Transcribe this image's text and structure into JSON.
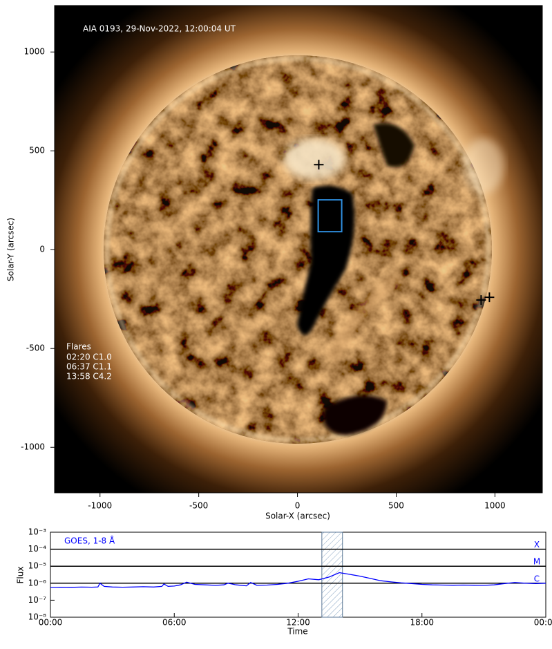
{
  "chart_data": [
    {
      "type": "image",
      "annotation": "AIA 0193, 29-Nov-2022, 12:00:04 UT",
      "flare_title": "Flares",
      "flares": [
        "02:20 C1.0",
        "06:37 C1.1",
        "13:58 C4.2"
      ],
      "xlabel": "Solar-X (arcsec)",
      "ylabel": "Solar-Y (arcsec)",
      "xlim": [
        -1230,
        1240
      ],
      "ylim": [
        -1230,
        1235
      ],
      "xticks": [
        -1000,
        -500,
        0,
        500,
        1000
      ],
      "yticks": [
        -1000,
        -500,
        0,
        500,
        1000
      ],
      "markers": {
        "x": [
          108,
          930,
          972
        ],
        "y": [
          430,
          -255,
          -241
        ],
        "color": "#000000"
      },
      "box": {
        "x": [
          105,
          224
        ],
        "y": [
          91,
          252
        ],
        "color": "#2f8fe0"
      }
    },
    {
      "type": "line",
      "xlabel": "Time",
      "ylabel": "Flux",
      "log_y": true,
      "xlim": [
        0,
        24
      ],
      "ylim": [
        1e-08,
        0.001
      ],
      "xticks": [
        {
          "value": 0,
          "label": "00:00"
        },
        {
          "value": 6,
          "label": "06:00"
        },
        {
          "value": 12,
          "label": "12:00"
        },
        {
          "value": 18,
          "label": "18:00"
        },
        {
          "value": 24,
          "label": "00:00"
        }
      ],
      "yticks": [
        {
          "value": 1e-08,
          "label": "10⁻⁸"
        },
        {
          "value": 1e-07,
          "label": "10⁻⁷"
        },
        {
          "value": 1e-06,
          "label": "10⁻⁶"
        },
        {
          "value": 1e-05,
          "label": "10⁻⁵"
        },
        {
          "value": 0.0001,
          "label": "10⁻⁴"
        },
        {
          "value": 0.001,
          "label": "10⁻³"
        }
      ],
      "levels": {
        "values": [
          0.0001,
          1e-05,
          1e-06
        ],
        "labels": [
          "X",
          "M",
          "C"
        ]
      },
      "shade": [
        13.15,
        14.15
      ],
      "x": [
        0,
        0.5,
        1,
        1.5,
        2,
        2.3,
        2.4,
        2.6,
        3,
        3.5,
        4,
        4.5,
        5,
        5.4,
        5.5,
        5.7,
        6,
        6.3,
        6.6,
        7,
        7.5,
        8,
        8.4,
        8.6,
        9,
        9.5,
        9.7,
        10,
        10.5,
        11,
        11.5,
        12,
        12.5,
        13,
        13.5,
        14,
        14.5,
        15,
        15.5,
        16,
        16.5,
        17,
        17.5,
        18,
        18.5,
        19,
        19.5,
        20,
        20.5,
        21,
        21.5,
        22,
        22.5,
        23,
        23.5,
        24
      ],
      "series": [
        {
          "name": "GOES, 1-8 Å",
          "color": "#0000ff",
          "values": [
            5.6e-07,
            5.8e-07,
            5.7e-07,
            5.9e-07,
            5.8e-07,
            6e-07,
            1e-06,
            6.5e-07,
            6e-07,
            5.8e-07,
            6e-07,
            6.2e-07,
            6e-07,
            6.5e-07,
            9e-07,
            6.5e-07,
            6.8e-07,
            8e-07,
            1.15e-06,
            8.5e-07,
            8e-07,
            7.5e-07,
            8e-07,
            1e-06,
            8e-07,
            7e-07,
            1.1e-06,
            7.5e-07,
            7.8e-07,
            8.5e-07,
            1e-06,
            1.3e-06,
            1.8e-06,
            1.6e-06,
            2.3e-06,
            4.2e-06,
            3.3e-06,
            2.6e-06,
            1.9e-06,
            1.4e-06,
            1.2e-06,
            1.05e-06,
            9.5e-07,
            8.5e-07,
            8e-07,
            7.8e-07,
            7.6e-07,
            7.8e-07,
            7.6e-07,
            7.5e-07,
            8e-07,
            9.5e-07,
            1.1e-06,
            1e-06,
            9.5e-07,
            1e-06
          ]
        }
      ]
    }
  ]
}
